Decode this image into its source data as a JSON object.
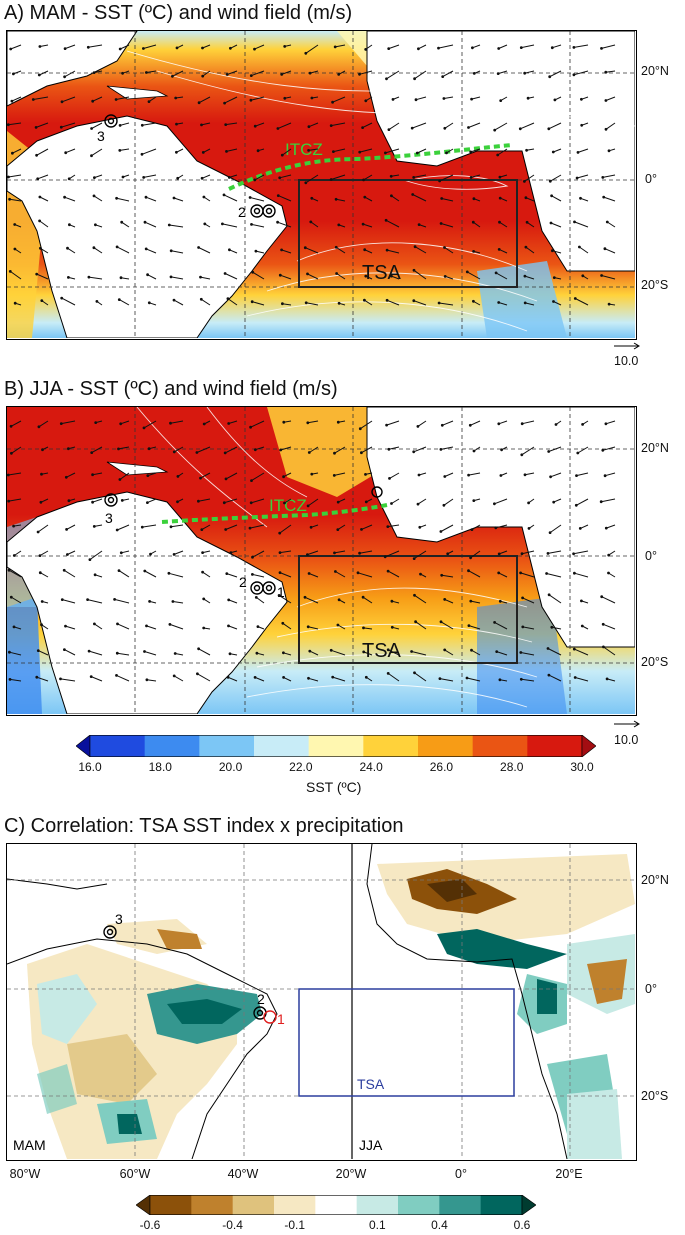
{
  "panel_a": {
    "title": "A) MAM - SST (ºC) and wind field (m/s)",
    "itcz_label": "ITCZ",
    "box_label": "TSA",
    "site_labels": [
      "2",
      "3"
    ],
    "scale_label": "10.0"
  },
  "panel_b": {
    "title": "B) JJA - SST (ºC) and wind field (m/s)",
    "itcz_label": "ITCZ",
    "box_label": "TSA",
    "site_labels": [
      "2",
      "1",
      "3"
    ],
    "scale_label": "10.0"
  },
  "lat_labels_ab": [
    "20°N",
    "0°",
    "20°S"
  ],
  "sst_colorbar": {
    "ticks": [
      "16.0",
      "18.0",
      "20.0",
      "22.0",
      "24.0",
      "26.0",
      "28.0",
      "30.0"
    ],
    "label": "SST (ºC)",
    "colors": [
      "#08109c",
      "#1f4be0",
      "#3d8bf0",
      "#7cc6f5",
      "#c8ecf7",
      "#fff7b0",
      "#ffd23a",
      "#f79c16",
      "#ea5514",
      "#d7190f",
      "#a30d12"
    ]
  },
  "panel_c": {
    "title": "C) Correlation: TSA SST index x precipitation",
    "box_label": "TSA",
    "season_left": "MAM",
    "season_right": "JJA",
    "site_labels": [
      "3",
      "2",
      "1"
    ],
    "lat_labels": [
      "20°N",
      "0°",
      "20°S"
    ],
    "lon_labels": [
      "80°W",
      "60°W",
      "40°W",
      "20°W",
      "0°",
      "20°E"
    ]
  },
  "corr_colorbar": {
    "ticks": [
      "-0.6",
      "-0.4",
      "-0.1",
      "0.1",
      "0.4",
      "0.6"
    ],
    "colors": [
      "#543005",
      "#8c510a",
      "#bf812d",
      "#dfc27d",
      "#f6e8c3",
      "#ffffff",
      "#c7eae5",
      "#80cdc1",
      "#35978f",
      "#01665e",
      "#003c30"
    ]
  }
}
